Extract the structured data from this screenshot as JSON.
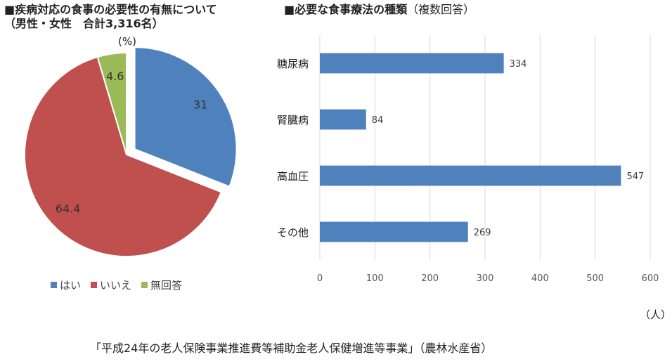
{
  "pie": {
    "title_line1": "■疾病対応の食事の必要性の有無について",
    "title_line2": "（男性・女性　合計3,316名）",
    "unit": "(%)"
  },
  "bar": {
    "title_main": "■必要な食事療法の種類",
    "title_sub": "（複数回答）",
    "unit": "（人）"
  },
  "footer": "「平成24年の老人保険事業推進費等補助金老人保健増進等事業」（農林水産省）",
  "chart_data": [
    {
      "type": "pie",
      "categories": [
        "はい",
        "いいえ",
        "無回答"
      ],
      "values": [
        31,
        64.4,
        4.6
      ],
      "value_labels": [
        "31",
        "64.4",
        "4.6"
      ],
      "colors": [
        "#4f81bd",
        "#c0504d",
        "#9bbb59"
      ],
      "exploded": "はい",
      "legend": "bottom"
    },
    {
      "type": "bar",
      "orientation": "horizontal",
      "categories": [
        "糖尿病",
        "腎臓病",
        "高血圧",
        "その他"
      ],
      "values": [
        334,
        84,
        547,
        269
      ],
      "xlim": [
        0,
        600
      ],
      "xticks": [
        0,
        100,
        200,
        300,
        400,
        500,
        600
      ],
      "grid": true,
      "color": "#4f81bd"
    }
  ]
}
